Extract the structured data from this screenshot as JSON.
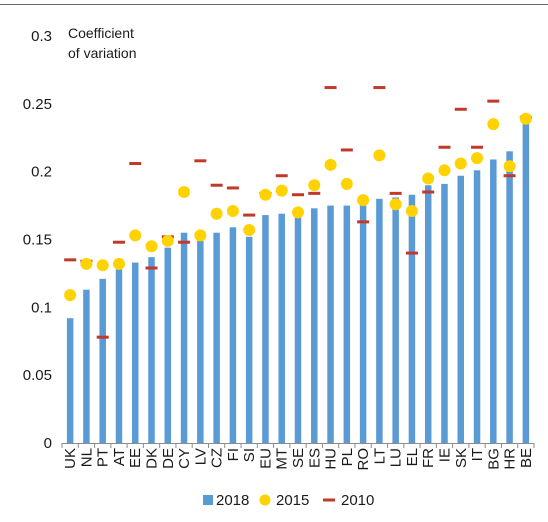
{
  "chart_data": {
    "type": "bar",
    "ylabel_lines": [
      "Coefficient",
      "of variation"
    ],
    "ylim": [
      0,
      0.3
    ],
    "yticks": [
      "0",
      "0.05",
      "0.1",
      "0.15",
      "0.2",
      "0.25",
      "0.3"
    ],
    "ytick_values": [
      0,
      0.05,
      0.1,
      0.15,
      0.2,
      0.25,
      0.3
    ],
    "grid": false,
    "legend_position": "bottom",
    "categories": [
      "UK",
      "NL",
      "PT",
      "AT",
      "EE",
      "DK",
      "DE",
      "CY",
      "LV",
      "CZ",
      "FI",
      "SI",
      "EU",
      "MT",
      "SE",
      "ES",
      "HU",
      "PL",
      "RO",
      "LT",
      "LU",
      "EL",
      "FR",
      "IE",
      "SK",
      "IT",
      "BG",
      "HR",
      "BE"
    ],
    "series": [
      {
        "name": "2018",
        "kind": "bar",
        "color": "#5b9bd5",
        "values": [
          0.092,
          0.113,
          0.121,
          0.128,
          0.133,
          0.137,
          0.144,
          0.155,
          0.149,
          0.155,
          0.159,
          0.152,
          0.168,
          0.169,
          0.171,
          0.173,
          0.175,
          0.175,
          0.176,
          0.18,
          0.181,
          0.183,
          0.19,
          0.191,
          0.197,
          0.201,
          0.209,
          0.215,
          0.238
        ]
      },
      {
        "name": "2015",
        "kind": "dot",
        "color": "#ffd200",
        "values": [
          0.109,
          0.132,
          0.131,
          0.132,
          0.153,
          0.145,
          0.149,
          0.185,
          0.153,
          0.169,
          0.171,
          0.157,
          0.183,
          0.186,
          0.17,
          0.19,
          0.205,
          0.191,
          0.179,
          0.212,
          0.176,
          0.171,
          0.195,
          0.201,
          0.206,
          0.21,
          0.235,
          0.204,
          0.239
        ]
      },
      {
        "name": "2010",
        "kind": "dash",
        "color": "#c0392b",
        "values": [
          0.135,
          0.134,
          0.078,
          0.148,
          0.206,
          0.129,
          0.152,
          0.148,
          0.208,
          0.19,
          0.188,
          0.168,
          0.184,
          0.197,
          0.183,
          0.184,
          0.262,
          0.216,
          0.163,
          0.262,
          0.184,
          0.14,
          0.185,
          0.218,
          0.246,
          0.218,
          0.252,
          0.197,
          0.24
        ]
      }
    ]
  }
}
